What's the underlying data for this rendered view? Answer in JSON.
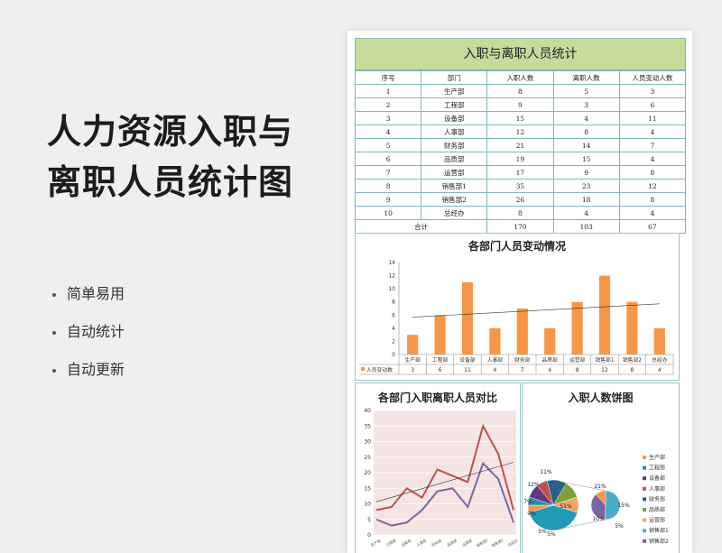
{
  "hero": {
    "line1": "人力资源入职与",
    "line2": "离职人员统计图"
  },
  "bullets": [
    "简单易用",
    "自动统计",
    "自动更新"
  ],
  "table": {
    "title": "入职与离职人员统计",
    "headers": [
      "序号",
      "部门",
      "入职人数",
      "离职人数",
      "人员变动人数"
    ],
    "rows": [
      [
        "1",
        "生产部",
        "8",
        "5",
        "3"
      ],
      [
        "2",
        "工程部",
        "9",
        "3",
        "6"
      ],
      [
        "3",
        "设备部",
        "15",
        "4",
        "11"
      ],
      [
        "4",
        "人事部",
        "12",
        "8",
        "4"
      ],
      [
        "5",
        "财务部",
        "21",
        "14",
        "7"
      ],
      [
        "6",
        "品质部",
        "19",
        "15",
        "4"
      ],
      [
        "7",
        "运营部",
        "17",
        "9",
        "8"
      ],
      [
        "8",
        "销售部1",
        "35",
        "23",
        "12"
      ],
      [
        "9",
        "销售部2",
        "26",
        "18",
        "8"
      ],
      [
        "10",
        "总经办",
        "8",
        "4",
        "4"
      ]
    ],
    "total": {
      "label": "合计",
      "in": "170",
      "out": "103",
      "change": "67"
    }
  },
  "chart_data": [
    {
      "type": "bar",
      "title": "各部门人员变动情况",
      "categories": [
        "生产部",
        "工程部",
        "设备部",
        "人事部",
        "财务部",
        "品质部",
        "运营部",
        "销售部1",
        "销售部2",
        "总经办"
      ],
      "series": [
        {
          "name": "人员变动数",
          "values": [
            3,
            6,
            11,
            4,
            7,
            4,
            8,
            12,
            8,
            4
          ]
        }
      ],
      "ylim": [
        0,
        14
      ],
      "yticks": [
        0,
        2,
        4,
        6,
        8,
        10,
        12,
        14
      ],
      "trendline": true,
      "color": "#f79646"
    },
    {
      "type": "line",
      "title": "各部门入职离职人员对比",
      "categories": [
        "生产部",
        "工程部",
        "设备部",
        "人事部",
        "财务部",
        "品质部",
        "运营部",
        "销售部1",
        "销售部2",
        "总经办"
      ],
      "series": [
        {
          "values": [
            8,
            9,
            15,
            12,
            21,
            19,
            17,
            35,
            26,
            8
          ],
          "color": "#c0504d"
        },
        {
          "values": [
            5,
            3,
            4,
            8,
            14,
            15,
            9,
            23,
            18,
            4
          ],
          "color": "#8064a2"
        }
      ],
      "ylim": [
        0,
        40
      ],
      "yticks": [
        0,
        5,
        10,
        15,
        20,
        25,
        30,
        35,
        40
      ],
      "trendline": true
    },
    {
      "type": "pie",
      "title": "入职人数饼图",
      "categories": [
        "生产部",
        "工程部",
        "设备部",
        "人事部",
        "财务部",
        "品质部",
        "运营部",
        "销售部1",
        "销售部2",
        "总经办"
      ],
      "values": [
        8,
        9,
        15,
        12,
        21,
        19,
        17,
        35,
        26,
        8
      ],
      "percent_labels_main": [
        "51%",
        "11%",
        "12%",
        "7%",
        "9%",
        "5%",
        "5%"
      ],
      "percent_labels_secondary": [
        "21%",
        "15%",
        "10%",
        "5%"
      ],
      "legend_labels": [
        "生产部",
        "工程部",
        "设备部",
        "人事部",
        "财务部",
        "品质部",
        "运营部",
        "销售部1",
        "销售部2"
      ],
      "legend_colors": [
        "#f79646",
        "#2c8ca8",
        "#5e3a86",
        "#c0504d",
        "#2a5f87",
        "#7e9f38",
        "#f0a868",
        "#4bacc6",
        "#8064a2"
      ]
    }
  ]
}
